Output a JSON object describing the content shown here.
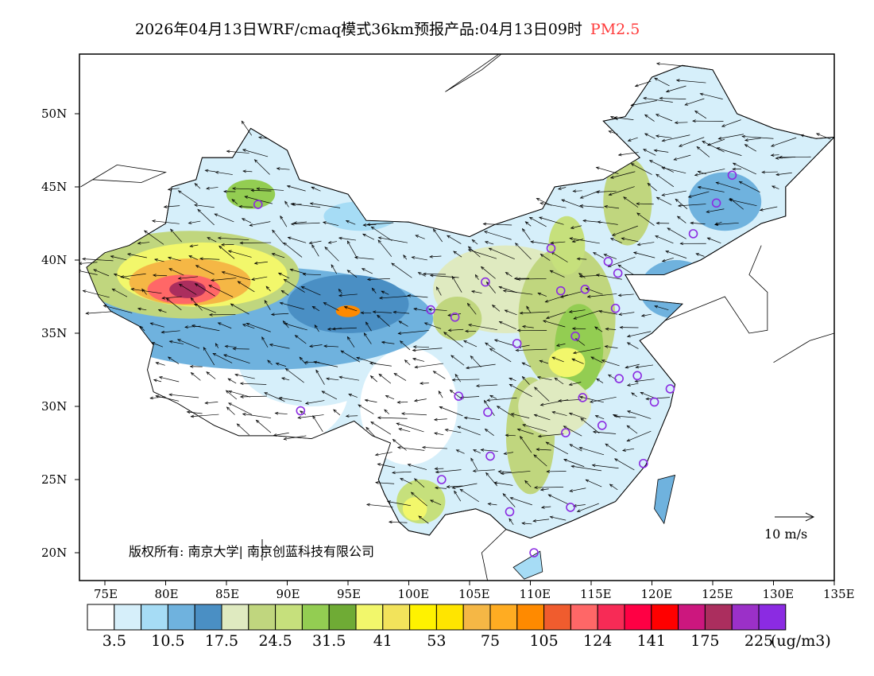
{
  "title": {
    "main": "2026年04月13日WRF/cmaq模式36km预报产品:04月13日09时",
    "species": "PM2.5",
    "species_color": "#ff3b3b"
  },
  "axes": {
    "lon_ticks": [
      "75E",
      "80E",
      "85E",
      "90E",
      "95E",
      "100E",
      "105E",
      "110E",
      "115E",
      "120E",
      "125E",
      "130E",
      "135E"
    ],
    "lat_ticks": [
      "50N",
      "45N",
      "40N",
      "35N",
      "30N",
      "25N",
      "20N"
    ]
  },
  "colorbar": {
    "colors": [
      "#ffffff",
      "#d6effa",
      "#a6dcf5",
      "#6fb2de",
      "#4a8fc4",
      "#dfeac0",
      "#c0d67e",
      "#c6e07c",
      "#93cd52",
      "#6fab35",
      "#f2f76b",
      "#f2e35b",
      "#fff200",
      "#ffe500",
      "#f5b745",
      "#ffac22",
      "#ff8a00",
      "#f05c2e",
      "#ff6767",
      "#f72b56",
      "#ff0044",
      "#ff0000",
      "#cc177e",
      "#ab2e5e",
      "#9b30c8",
      "#8b2be2"
    ],
    "labels": [
      "3.5",
      "10.5",
      "17.5",
      "24.5",
      "31.5",
      "41",
      "53",
      "75",
      "105",
      "124",
      "141",
      "175",
      "225"
    ],
    "unit": "(ug/m3)"
  },
  "copyright": "版权所有: 南京大学| 南京创蓝科技有限公司",
  "wind_reference": "10 m/s"
}
